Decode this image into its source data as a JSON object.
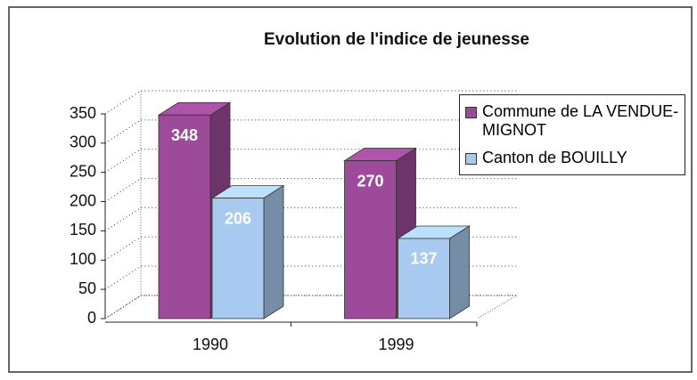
{
  "chart_data": {
    "type": "bar3d",
    "title": "Evolution de l'indice de jeunesse",
    "categories": [
      "1990",
      "1999"
    ],
    "series": [
      {
        "name": "Commune de LA VENDUE-MIGNOT",
        "color": "#9c4a99",
        "values": [
          348,
          270
        ]
      },
      {
        "name": "Canton de BOUILLY",
        "color": "#a8c9f0",
        "values": [
          206,
          137
        ]
      }
    ],
    "ylim": [
      0,
      350
    ],
    "yticks": [
      0,
      50,
      100,
      150,
      200,
      250,
      300,
      350
    ],
    "grid": true,
    "legend": "right"
  }
}
